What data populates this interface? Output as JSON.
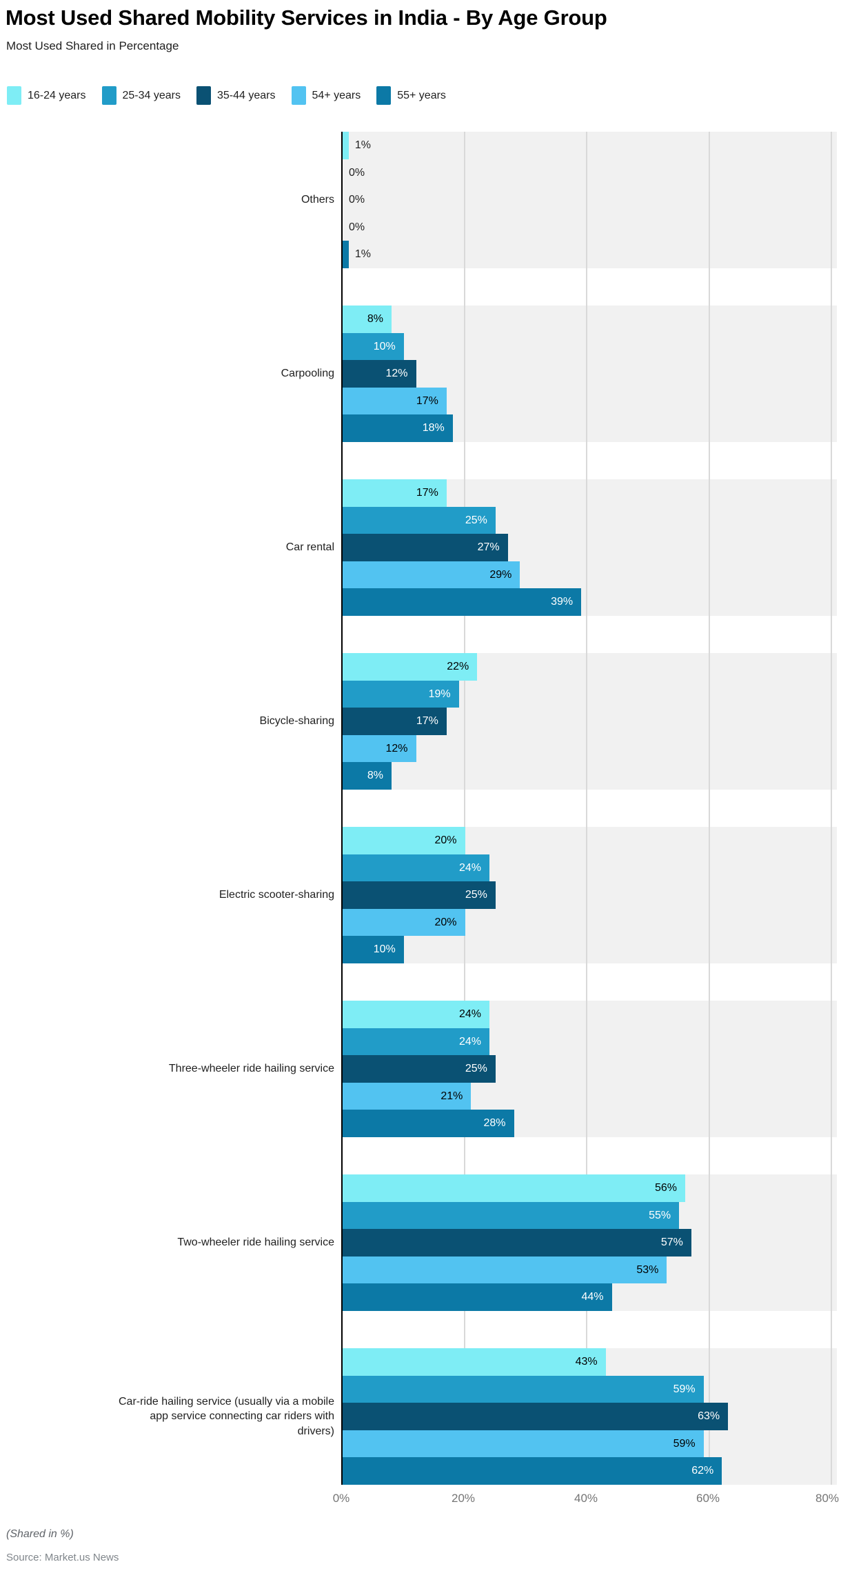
{
  "title": "Most Used Shared Mobility Services in India - By Age Group",
  "subtitle": "Most Used Shared in Percentage",
  "chart_data": {
    "type": "bar",
    "orientation": "horizontal",
    "title": "Most Used Shared Mobility Services in India - By Age Group",
    "subtitle": "Most Used Shared in Percentage",
    "xlim": [
      0,
      80
    ],
    "xlabel_ticks": [
      "0%",
      "20%",
      "40%",
      "60%",
      "80%"
    ],
    "grid": "vertical",
    "legend_position": "top",
    "value_suffix": "%",
    "band_color": "#f1f1f1",
    "categories": [
      "Others",
      "Carpooling",
      "Car rental",
      "Bicycle-sharing",
      "Electric scooter-sharing",
      "Three-wheeler ride hailing service",
      "Two-wheeler ride hailing service",
      "Car-ride hailing service (usually via a mobile\napp service connecting car riders with\ndrivers)"
    ],
    "series": [
      {
        "name": "16-24 years",
        "color": "#7eedf5",
        "label_color": "#000000",
        "values": [
          1,
          8,
          17,
          22,
          20,
          24,
          56,
          43
        ]
      },
      {
        "name": "25-34 years",
        "color": "#219cc8",
        "label_color": "#ffffff",
        "values": [
          0,
          10,
          25,
          19,
          24,
          24,
          55,
          59
        ]
      },
      {
        "name": "35-44 years",
        "color": "#0a5173",
        "label_color": "#ffffff",
        "values": [
          0,
          12,
          27,
          17,
          25,
          25,
          57,
          63
        ]
      },
      {
        "name": "54+ years",
        "color": "#52c3f1",
        "label_color": "#000000",
        "values": [
          0,
          17,
          29,
          12,
          20,
          21,
          53,
          59
        ]
      },
      {
        "name": "55+ years",
        "color": "#0c79a6",
        "label_color": "#ffffff",
        "values": [
          1,
          18,
          39,
          8,
          10,
          28,
          44,
          62
        ]
      }
    ]
  },
  "footer": {
    "note": "(Shared in %)",
    "source": "Source: Market.us News"
  }
}
